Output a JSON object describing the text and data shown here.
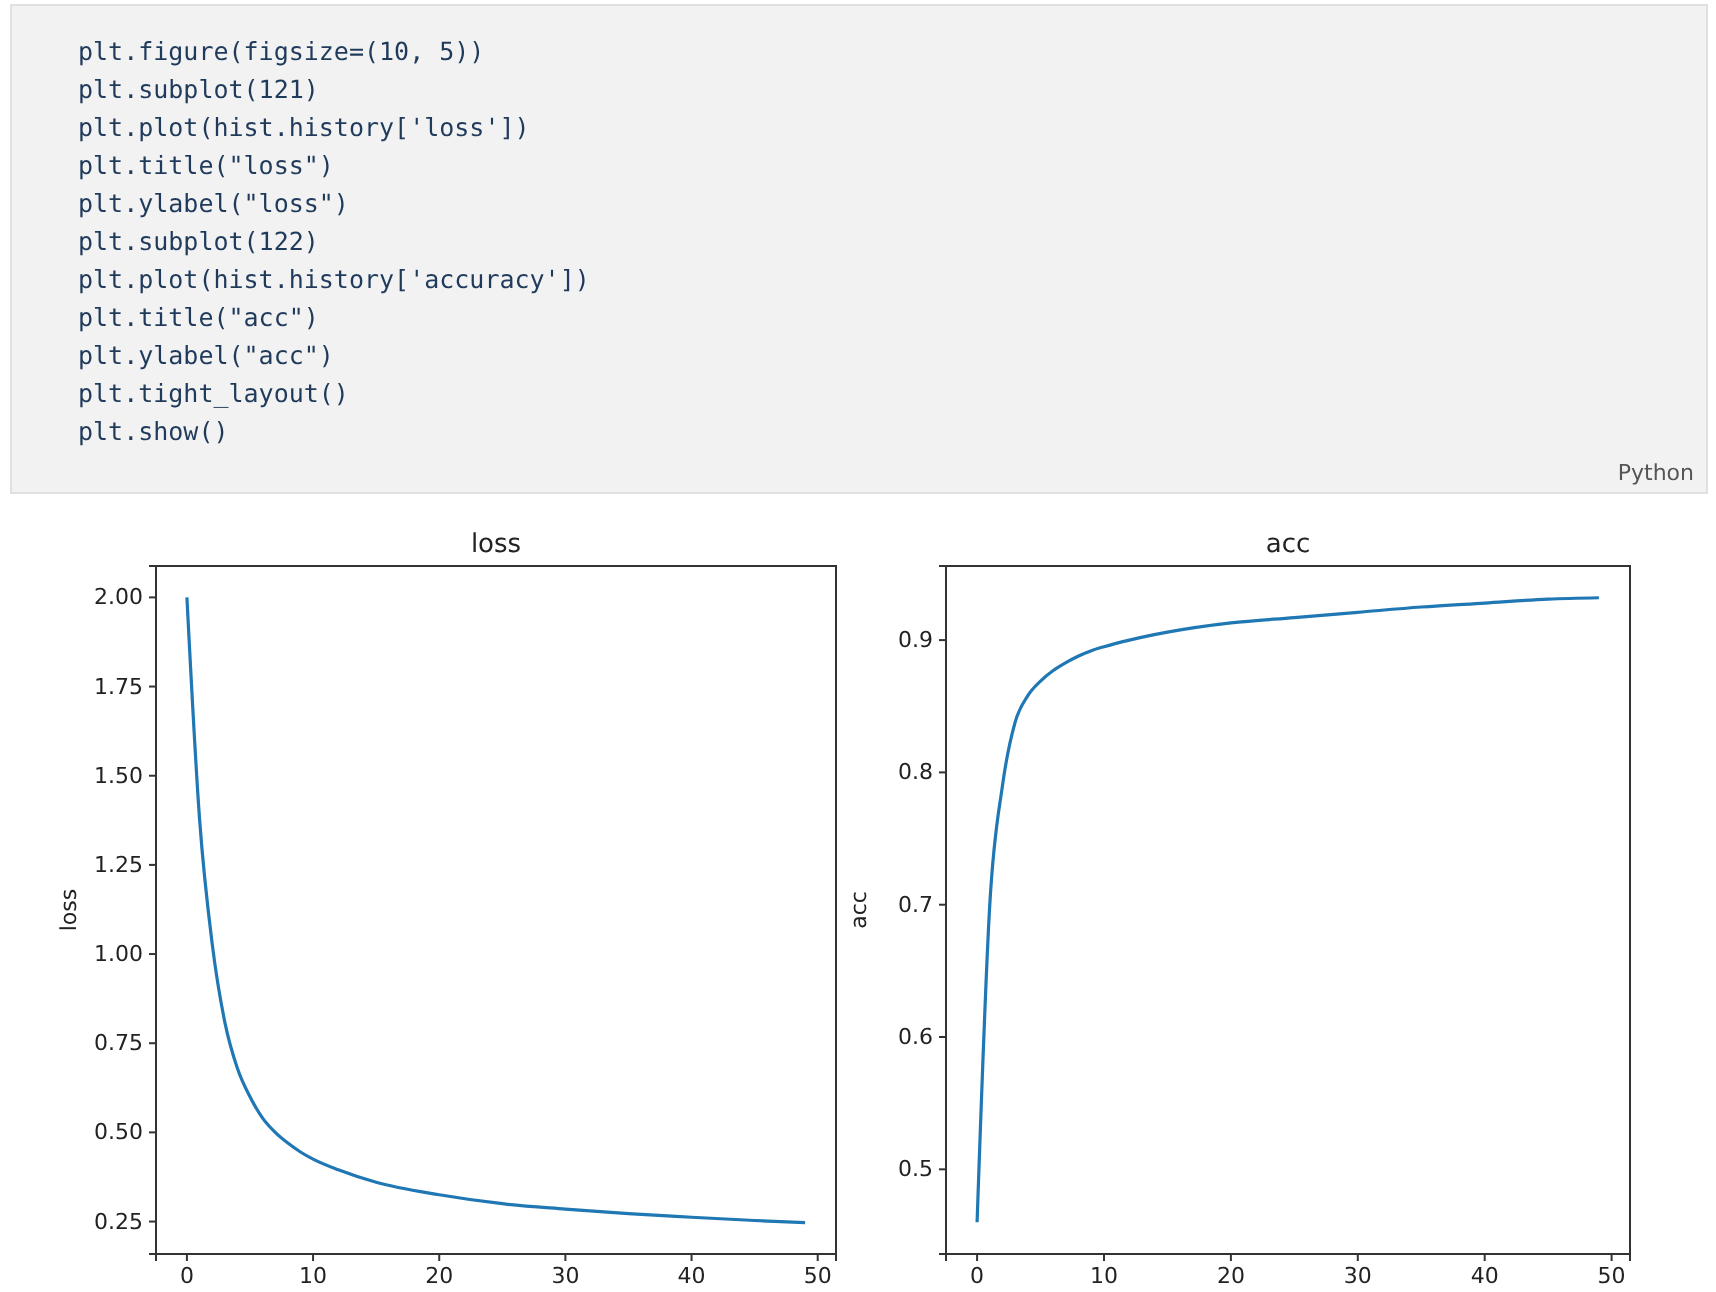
{
  "chart_data": [
    {
      "type": "other",
      "annotations": [
        "plt.figure(figsize=(10, 5))",
        "plt.subplot(121)",
        "plt.plot(hist.history['loss'])",
        "plt.title(\"loss\")",
        "plt.ylabel(\"loss\")",
        "plt.subplot(122)",
        "plt.plot(hist.history['accuracy'])",
        "plt.title(\"acc\")",
        "plt.ylabel(\"acc\")",
        "plt.tight_layout()",
        "plt.show()",
        "Python"
      ]
    },
    {
      "type": "line",
      "title": "loss",
      "ylabel": "loss",
      "xlim": [
        -2.45,
        51.45
      ],
      "ylim": [
        0.159,
        2.088
      ],
      "xticks": [
        0,
        10,
        20,
        30,
        40,
        50
      ],
      "yticks": [
        {
          "value": 0.25,
          "label": "0.25"
        },
        {
          "value": 0.5,
          "label": "0.50"
        },
        {
          "value": 0.75,
          "label": "0.75"
        },
        {
          "value": 1,
          "label": "1.00"
        },
        {
          "value": 1.25,
          "label": "1.25"
        },
        {
          "value": 1.5,
          "label": "1.50"
        },
        {
          "value": 1.75,
          "label": "1.75"
        },
        {
          "value": 2,
          "label": "2.00"
        }
      ],
      "grid": false,
      "series": [
        {
          "color": "#1f77b4",
          "x": [
            0,
            1,
            2,
            3,
            4,
            5,
            6,
            7,
            8,
            9,
            10,
            12,
            15,
            20,
            25,
            30,
            35,
            40,
            45,
            49
          ],
          "values": [
            2.0,
            1.38,
            1.03,
            0.81,
            0.68,
            0.6,
            0.54,
            0.5,
            0.47,
            0.445,
            0.425,
            0.395,
            0.36,
            0.325,
            0.3,
            0.285,
            0.272,
            0.262,
            0.253,
            0.247
          ]
        }
      ]
    },
    {
      "type": "line",
      "title": "acc",
      "ylabel": "acc",
      "xlim": [
        -2.45,
        51.45
      ],
      "ylim": [
        0.436,
        0.956
      ],
      "xticks": [
        0,
        10,
        20,
        30,
        40,
        50
      ],
      "yticks": [
        0.5,
        0.6,
        0.7,
        0.8,
        0.9
      ],
      "grid": false,
      "series": [
        {
          "color": "#1f77b4",
          "x": [
            0,
            1,
            2,
            3,
            4,
            5,
            6,
            7,
            8,
            9,
            10,
            12,
            15,
            20,
            25,
            30,
            35,
            40,
            45,
            49
          ],
          "values": [
            0.46,
            0.7,
            0.79,
            0.838,
            0.858,
            0.869,
            0.877,
            0.883,
            0.888,
            0.892,
            0.895,
            0.9,
            0.906,
            0.913,
            0.917,
            0.921,
            0.925,
            0.928,
            0.931,
            0.932
          ]
        }
      ]
    }
  ]
}
